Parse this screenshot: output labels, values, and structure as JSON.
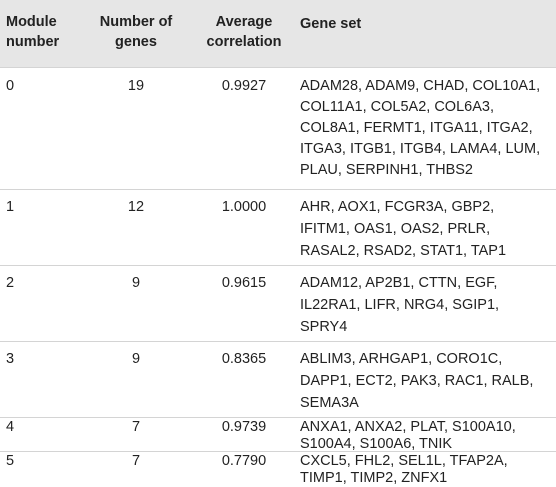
{
  "headers": {
    "module": [
      "Module",
      "number"
    ],
    "num_genes": [
      "Number of",
      "genes"
    ],
    "avg_corr": [
      "Average",
      "correlation"
    ],
    "gene_set": "Gene set"
  },
  "rows": [
    {
      "module": "0",
      "num_genes": "19",
      "avg_corr": "0.9927",
      "genes": [
        "ADAM28, ADAM9, CHAD, COL10A1,",
        "COL11A1, COL5A2, COL6A3,",
        "COL8A1, FERMT1, ITGA11, ITGA2,",
        "ITGA3, ITGB1, ITGB4, LAMA4, LUM,",
        "PLAU, SERPINH1, THBS2"
      ]
    },
    {
      "module": "1",
      "num_genes": "12",
      "avg_corr": "1.0000",
      "genes": [
        "AHR, AOX1, FCGR3A, GBP2,",
        "IFITM1, OAS1, OAS2, PRLR,",
        "RASAL2, RSAD2, STAT1, TAP1"
      ]
    },
    {
      "module": "2",
      "num_genes": "9",
      "avg_corr": "0.9615",
      "genes": [
        "ADAM12, AP2B1, CTTN, EGF,",
        "IL22RA1, LIFR, NRG4, SGIP1,",
        "SPRY4"
      ]
    },
    {
      "module": "3",
      "num_genes": "9",
      "avg_corr": "0.8365",
      "genes": [
        "ABLIM3, ARHGAP1, CORO1C,",
        "DAPP1, ECT2, PAK3, RAC1, RALB,",
        "SEMA3A"
      ]
    },
    {
      "module": "4",
      "num_genes": "7",
      "avg_corr": "0.9739",
      "genes": [
        "ANXA1, ANXA2, PLAT, S100A10,",
        "S100A4, S100A6, TNIK"
      ]
    },
    {
      "module": "5",
      "num_genes": "7",
      "avg_corr": "0.7790",
      "genes": [
        "CXCL5, FHL2, SEL1L, TFAP2A,",
        "TIMP1, TIMP2, ZNFX1"
      ]
    }
  ]
}
